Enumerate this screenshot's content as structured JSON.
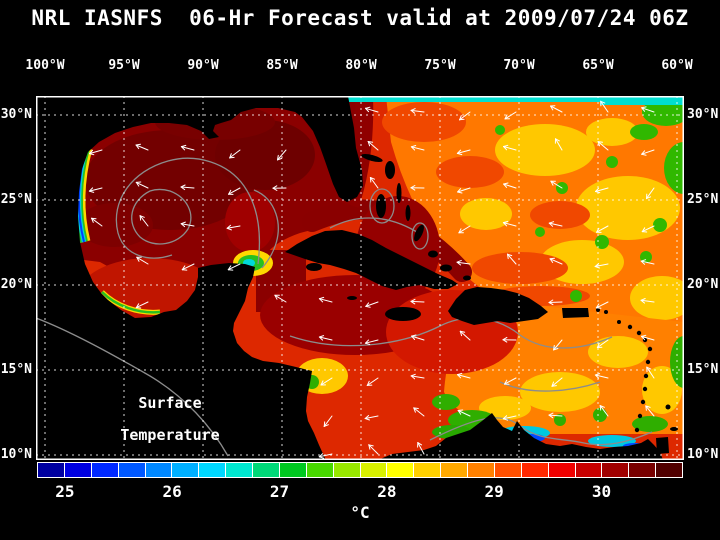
{
  "title": "NRL IASNFS  06-Hr Forecast valid at 2009/07/24 06Z",
  "axes": {
    "lon_labels": [
      "100°W",
      "95°W",
      "90°W",
      "85°W",
      "80°W",
      "75°W",
      "70°W",
      "65°W",
      "60°W"
    ],
    "lat_labels": [
      "30°N",
      "25°N",
      "20°N",
      "15°N",
      "10°N"
    ]
  },
  "map_overlay": {
    "line1": "Surface",
    "line2": "Temperature"
  },
  "colorbar": {
    "unit": "°C",
    "tick_labels": [
      "25",
      "26",
      "27",
      "28",
      "29",
      "30"
    ],
    "colors": [
      "#0000a0",
      "#0000e0",
      "#0028ff",
      "#0058ff",
      "#0088ff",
      "#00b0ff",
      "#00d8ff",
      "#00e8d0",
      "#00d878",
      "#00c820",
      "#48d800",
      "#98e800",
      "#d8f000",
      "#ffff00",
      "#ffd000",
      "#ffa800",
      "#ff8000",
      "#ff5000",
      "#ff2800",
      "#f00000",
      "#c80000",
      "#a00000",
      "#780000",
      "#500000"
    ]
  },
  "chart_data": {
    "type": "heatmap",
    "title": "NRL IASNFS 06-Hr Forecast valid at 2009/07/24 06Z",
    "variable": "Surface Temperature",
    "unit": "°C",
    "colorbar_ticks": [
      25,
      26,
      27,
      28,
      29,
      30
    ],
    "x_ticks_lon": [
      "100°W",
      "95°W",
      "90°W",
      "85°W",
      "80°W",
      "75°W",
      "70°W",
      "65°W",
      "60°W"
    ],
    "y_ticks_lat": [
      "30°N",
      "25°N",
      "20°N",
      "15°N",
      "10°N"
    ],
    "legend_position": "bottom",
    "grid": true
  }
}
